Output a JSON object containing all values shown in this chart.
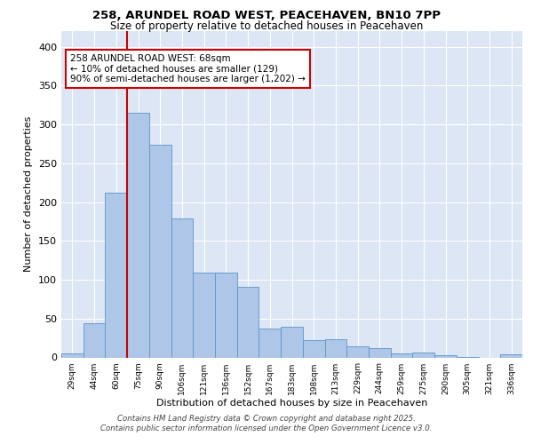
{
  "title1": "258, ARUNDEL ROAD WEST, PEACEHAVEN, BN10 7PP",
  "title2": "Size of property relative to detached houses in Peacehaven",
  "xlabel": "Distribution of detached houses by size in Peacehaven",
  "ylabel": "Number of detached properties",
  "bar_labels": [
    "29sqm",
    "44sqm",
    "60sqm",
    "75sqm",
    "90sqm",
    "106sqm",
    "121sqm",
    "136sqm",
    "152sqm",
    "167sqm",
    "183sqm",
    "198sqm",
    "213sqm",
    "229sqm",
    "244sqm",
    "259sqm",
    "275sqm",
    "290sqm",
    "305sqm",
    "321sqm",
    "336sqm"
  ],
  "bar_values": [
    5,
    44,
    212,
    315,
    274,
    179,
    109,
    109,
    91,
    37,
    39,
    22,
    24,
    14,
    12,
    5,
    6,
    3,
    1,
    0,
    4
  ],
  "bar_color": "#aec6e8",
  "bar_edge_color": "#5a96c8",
  "bg_color": "#dce6f5",
  "grid_color": "#ffffff",
  "red_line_color": "#cc0000",
  "annotation_text": "258 ARUNDEL ROAD WEST: 68sqm\n← 10% of detached houses are smaller (129)\n90% of semi-detached houses are larger (1,202) →",
  "annotation_box_color": "#ffffff",
  "annotation_box_edge": "#cc0000",
  "footer1": "Contains HM Land Registry data © Crown copyright and database right 2025.",
  "footer2": "Contains public sector information licensed under the Open Government Licence v3.0.",
  "ylim": [
    0,
    420
  ],
  "yticks": [
    0,
    50,
    100,
    150,
    200,
    250,
    300,
    350,
    400
  ]
}
